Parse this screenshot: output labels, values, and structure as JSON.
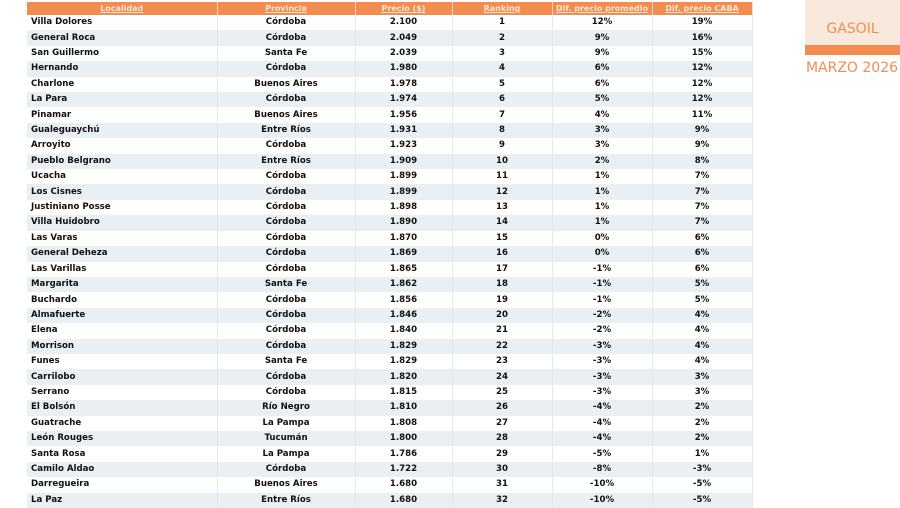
{
  "table": {
    "headers": [
      "Localidad",
      "Provincia",
      "Precio ($)",
      "Ranking",
      "Dif. precio promedio",
      "Dif. precio CABA"
    ],
    "rows": [
      [
        "Villa Dolores",
        "Córdoba",
        "2.100",
        "1",
        "12%",
        "19%"
      ],
      [
        "General Roca",
        "Córdoba",
        "2.049",
        "2",
        "9%",
        "16%"
      ],
      [
        "San Guillermo",
        "Santa Fe",
        "2.039",
        "3",
        "9%",
        "15%"
      ],
      [
        "Hernando",
        "Córdoba",
        "1.980",
        "4",
        "6%",
        "12%"
      ],
      [
        "Charlone",
        "Buenos Aires",
        "1.978",
        "5",
        "6%",
        "12%"
      ],
      [
        "La Para",
        "Córdoba",
        "1.974",
        "6",
        "5%",
        "12%"
      ],
      [
        "Pinamar",
        "Buenos Aires",
        "1.956",
        "7",
        "4%",
        "11%"
      ],
      [
        "Gualeguaychú",
        "Entre Ríos",
        "1.931",
        "8",
        "3%",
        "9%"
      ],
      [
        "Arroyito",
        "Córdoba",
        "1.923",
        "9",
        "3%",
        "9%"
      ],
      [
        "Pueblo Belgrano",
        "Entre Ríos",
        "1.909",
        "10",
        "2%",
        "8%"
      ],
      [
        "Ucacha",
        "Córdoba",
        "1.899",
        "11",
        "1%",
        "7%"
      ],
      [
        "Los Cisnes",
        "Córdoba",
        "1.899",
        "12",
        "1%",
        "7%"
      ],
      [
        "Justiniano Posse",
        "Córdoba",
        "1.898",
        "13",
        "1%",
        "7%"
      ],
      [
        "Villa Huidobro",
        "Córdoba",
        "1.890",
        "14",
        "1%",
        "7%"
      ],
      [
        "Las Varas",
        "Córdoba",
        "1.870",
        "15",
        "0%",
        "6%"
      ],
      [
        "General Deheza",
        "Córdoba",
        "1.869",
        "16",
        "0%",
        "6%"
      ],
      [
        "Las Varillas",
        "Córdoba",
        "1.865",
        "17",
        "-1%",
        "6%"
      ],
      [
        "Margarita",
        "Santa Fe",
        "1.862",
        "18",
        "-1%",
        "5%"
      ],
      [
        "Buchardo",
        "Córdoba",
        "1.856",
        "19",
        "-1%",
        "5%"
      ],
      [
        "Almafuerte",
        "Córdoba",
        "1.846",
        "20",
        "-2%",
        "4%"
      ],
      [
        "Elena",
        "Córdoba",
        "1.840",
        "21",
        "-2%",
        "4%"
      ],
      [
        "Morrison",
        "Córdoba",
        "1.829",
        "22",
        "-3%",
        "4%"
      ],
      [
        "Funes",
        "Santa Fe",
        "1.829",
        "23",
        "-3%",
        "4%"
      ],
      [
        "Carrilobo",
        "Córdoba",
        "1.820",
        "24",
        "-3%",
        "3%"
      ],
      [
        "Serrano",
        "Córdoba",
        "1.815",
        "25",
        "-3%",
        "3%"
      ],
      [
        "El Bolsón",
        "Río Negro",
        "1.810",
        "26",
        "-4%",
        "2%"
      ],
      [
        "Guatrache",
        "La Pampa",
        "1.808",
        "27",
        "-4%",
        "2%"
      ],
      [
        "León Rouges",
        "Tucumán",
        "1.800",
        "28",
        "-4%",
        "2%"
      ],
      [
        "Santa Rosa",
        "La Pampa",
        "1.786",
        "29",
        "-5%",
        "1%"
      ],
      [
        "Camilo Aldao",
        "Córdoba",
        "1.722",
        "30",
        "-8%",
        "-3%"
      ],
      [
        "Darregueira",
        "Buenos Aires",
        "1.680",
        "31",
        "-10%",
        "-5%"
      ],
      [
        "La Paz",
        "Entre Ríos",
        "1.680",
        "32",
        "-10%",
        "-5%"
      ]
    ]
  },
  "side": {
    "fuel": "GASOIL",
    "period": "MARZO 2026"
  },
  "colors": {
    "accent": "#f58c4f",
    "badge_bg": "#f9e8dc",
    "alt_row": "#e9eff2"
  }
}
